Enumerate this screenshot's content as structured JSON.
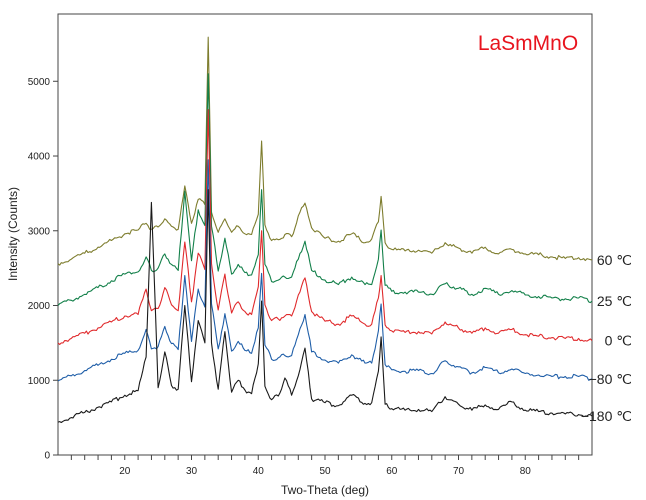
{
  "chart_data": {
    "type": "line",
    "title": "LaSmMnO",
    "title_color": "#e8141e",
    "xlabel": "Two-Theta (deg)",
    "ylabel": "Intensity (Counts)",
    "xlim": [
      10,
      90
    ],
    "ylim": [
      0,
      5900
    ],
    "x_ticks": [
      20,
      30,
      40,
      50,
      60,
      70,
      80
    ],
    "x_tick_labels": [
      "20",
      "30",
      "40",
      "50",
      "60",
      "70",
      "80"
    ],
    "y_ticks": [
      0,
      1000,
      2000,
      3000,
      4000,
      5000
    ],
    "y_tick_labels": [
      "0",
      "1000",
      "2000",
      "3000",
      "4000",
      "5000"
    ],
    "grid": false,
    "legend": "series labels at right edge",
    "x": [
      10,
      12,
      14,
      16,
      18,
      20,
      22,
      23.2,
      24,
      25,
      26,
      27,
      28,
      29,
      30,
      31,
      32,
      32.5,
      33,
      34,
      35,
      36,
      37,
      38,
      39,
      40,
      40.5,
      41,
      42,
      43,
      44,
      45,
      46,
      47,
      48,
      50,
      52,
      54,
      56,
      57,
      58,
      58.4,
      59,
      60,
      62,
      64,
      66,
      68,
      68.5,
      70,
      72,
      74,
      76,
      78,
      80,
      82,
      84,
      86,
      88,
      90
    ],
    "series": [
      {
        "name": "60 ℃",
        "color": "#7e7d2e",
        "values": [
          2560,
          2620,
          2700,
          2780,
          2870,
          2960,
          3010,
          3100,
          3020,
          3050,
          3160,
          3060,
          3020,
          3600,
          3100,
          3420,
          3350,
          5590,
          3250,
          2980,
          3160,
          2980,
          3060,
          2960,
          2950,
          3220,
          4200,
          3080,
          2870,
          2880,
          2950,
          2920,
          3200,
          3370,
          3040,
          2900,
          2860,
          2960,
          2840,
          2890,
          3120,
          3460,
          2840,
          2750,
          2730,
          2740,
          2700,
          2840,
          2800,
          2770,
          2700,
          2780,
          2690,
          2750,
          2690,
          2680,
          2650,
          2630,
          2640,
          2610
        ]
      },
      {
        "name": "25 ℃",
        "color": "#13804a",
        "values": [
          2000,
          2070,
          2150,
          2240,
          2330,
          2420,
          2450,
          2650,
          2470,
          2500,
          2690,
          2550,
          2470,
          3530,
          2600,
          3280,
          3070,
          5100,
          3060,
          2460,
          2900,
          2420,
          2550,
          2440,
          2410,
          2680,
          3550,
          2550,
          2320,
          2340,
          2380,
          2380,
          2620,
          2860,
          2470,
          2340,
          2280,
          2380,
          2280,
          2280,
          2620,
          3010,
          2270,
          2190,
          2180,
          2180,
          2150,
          2290,
          2270,
          2230,
          2150,
          2230,
          2150,
          2200,
          2140,
          2120,
          2100,
          2090,
          2100,
          2060
        ]
      },
      {
        "name": "0 ℃",
        "color": "#e02a2c",
        "values": [
          1500,
          1560,
          1630,
          1700,
          1780,
          1860,
          1880,
          2220,
          1930,
          1960,
          2240,
          2010,
          1930,
          2850,
          2050,
          2700,
          2480,
          4620,
          2560,
          1940,
          2420,
          1900,
          2050,
          1920,
          1880,
          2250,
          3000,
          2010,
          1800,
          1820,
          1860,
          1860,
          2140,
          2370,
          1920,
          1790,
          1750,
          1860,
          1750,
          1750,
          2100,
          2400,
          1740,
          1660,
          1640,
          1650,
          1620,
          1780,
          1740,
          1700,
          1630,
          1700,
          1630,
          1680,
          1610,
          1590,
          1570,
          1560,
          1560,
          1530
        ]
      },
      {
        "name": "−80 ℃",
        "color": "#1f5ea8",
        "values": [
          990,
          1060,
          1130,
          1200,
          1280,
          1360,
          1400,
          1680,
          1420,
          1450,
          1720,
          1490,
          1410,
          2400,
          1520,
          2220,
          1980,
          3950,
          2020,
          1420,
          1890,
          1390,
          1520,
          1400,
          1360,
          1700,
          2430,
          1470,
          1280,
          1300,
          1330,
          1330,
          1610,
          1880,
          1380,
          1270,
          1230,
          1340,
          1230,
          1230,
          1660,
          2020,
          1210,
          1140,
          1120,
          1130,
          1090,
          1260,
          1220,
          1180,
          1100,
          1170,
          1100,
          1150,
          1090,
          1070,
          1050,
          1050,
          1050,
          1020
        ]
      },
      {
        "name": "−180 ℃",
        "color": "#1a1a1a",
        "values": [
          440,
          500,
          570,
          640,
          710,
          800,
          860,
          1310,
          3380,
          900,
          1380,
          930,
          880,
          2000,
          980,
          1800,
          1500,
          3550,
          1500,
          880,
          1650,
          840,
          1000,
          870,
          820,
          1220,
          2060,
          920,
          740,
          790,
          1030,
          800,
          1060,
          1430,
          750,
          700,
          660,
          800,
          690,
          700,
          1120,
          1580,
          680,
          620,
          600,
          610,
          580,
          780,
          740,
          680,
          600,
          670,
          610,
          710,
          600,
          580,
          560,
          550,
          540,
          520
        ]
      }
    ]
  }
}
